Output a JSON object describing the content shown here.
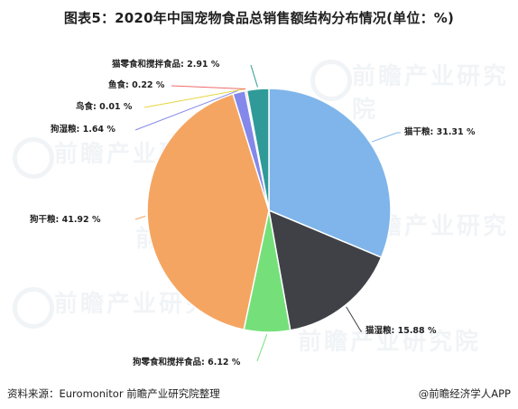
{
  "title": "图表5：2020年中国宠物食品总销售额结构分布情况(单位：%)",
  "footer": {
    "source": "资料来源：Euromonitor 前瞻产业研究院整理",
    "credit": "@前瞻经济学人APP"
  },
  "watermark": "前瞻产业研究院",
  "chart_data": {
    "type": "pie",
    "title": "图表5：2020年中国宠物食品总销售额结构分布情况(单位：%)",
    "unit": "%",
    "slices": [
      {
        "label": "猫干粮",
        "value": 31.31,
        "text": "猫干粮: 31.31 %",
        "color": "#7fb5ea"
      },
      {
        "label": "猫湿粮",
        "value": 15.88,
        "text": "猫湿粮: 15.88 %",
        "color": "#3f4147"
      },
      {
        "label": "狗零食和搅拌食品",
        "value": 6.12,
        "text": "狗零食和搅拌食品: 6.12 %",
        "color": "#75e07a"
      },
      {
        "label": "狗干粮",
        "value": 41.92,
        "text": "狗干粮: 41.92 %",
        "color": "#f5a562"
      },
      {
        "label": "狗湿粮",
        "value": 1.64,
        "text": "狗湿粮: 1.64 %",
        "color": "#8388ea"
      },
      {
        "label": "鸟食",
        "value": 0.01,
        "text": "鸟食: 0.01 %",
        "color": "#e6d63c"
      },
      {
        "label": "鱼食",
        "value": 0.22,
        "text": "鱼食: 0.22 %",
        "color": "#ef6b6b"
      },
      {
        "label": "猫零食和搅拌食品",
        "value": 2.91,
        "text": "猫零食和搅拌食品: 2.91 %",
        "color": "#2f9a97"
      }
    ]
  }
}
